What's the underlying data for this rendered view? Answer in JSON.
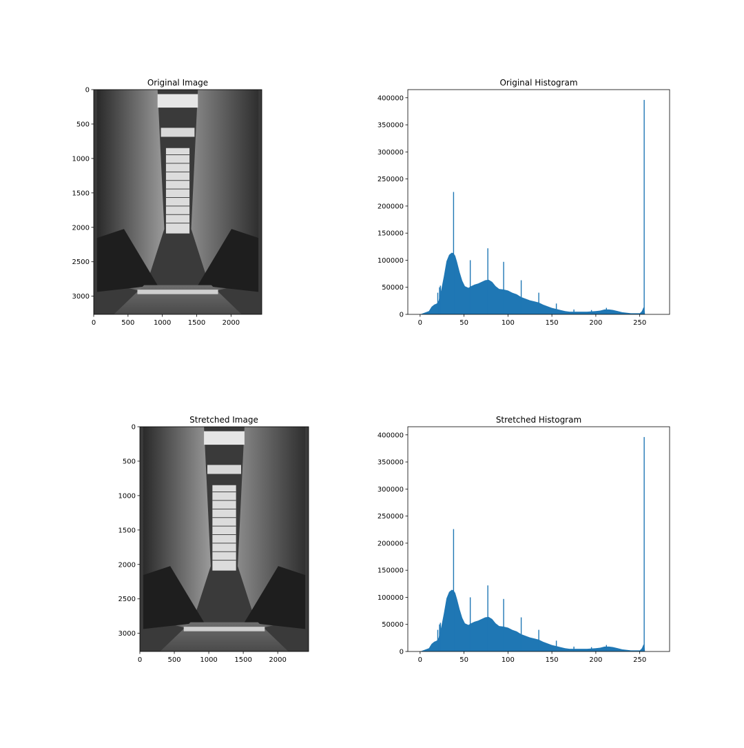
{
  "figure": {
    "background": "#ffffff",
    "bar_color": "#1f77b4"
  },
  "chart_data": [
    {
      "type": "image",
      "title": "Original Image",
      "xticks": [
        0,
        500,
        1000,
        1500,
        2000
      ],
      "yticks": [
        0,
        500,
        1000,
        1500,
        2000,
        2500,
        3000
      ],
      "xlim": [
        0,
        2448
      ],
      "ylim": [
        3264,
        0
      ],
      "grid": false
    },
    {
      "type": "bar",
      "title": "Original Histogram",
      "xticks": [
        0,
        50,
        100,
        150,
        200,
        250
      ],
      "yticks": [
        0,
        50000,
        100000,
        150000,
        200000,
        250000,
        300000,
        350000,
        400000
      ],
      "xlim": [
        -14,
        284
      ],
      "ylim": [
        0,
        415000
      ],
      "grid": false,
      "envelope": [
        [
          0,
          0
        ],
        [
          5,
          3000
        ],
        [
          10,
          6000
        ],
        [
          13,
          14000
        ],
        [
          16,
          18000
        ],
        [
          19,
          20000
        ],
        [
          21,
          25000
        ],
        [
          24,
          45000
        ],
        [
          27,
          70000
        ],
        [
          30,
          98000
        ],
        [
          33,
          110000
        ],
        [
          36,
          114000
        ],
        [
          38,
          113000
        ],
        [
          40,
          108000
        ],
        [
          42,
          97000
        ],
        [
          45,
          78000
        ],
        [
          48,
          62000
        ],
        [
          51,
          52000
        ],
        [
          55,
          49000
        ],
        [
          58,
          52000
        ],
        [
          62,
          55000
        ],
        [
          66,
          57000
        ],
        [
          70,
          60000
        ],
        [
          74,
          63000
        ],
        [
          78,
          64000
        ],
        [
          82,
          60000
        ],
        [
          86,
          52000
        ],
        [
          90,
          47000
        ],
        [
          95,
          46000
        ],
        [
          100,
          44000
        ],
        [
          105,
          40000
        ],
        [
          110,
          37000
        ],
        [
          115,
          32000
        ],
        [
          120,
          29000
        ],
        [
          125,
          26000
        ],
        [
          130,
          24000
        ],
        [
          135,
          22000
        ],
        [
          140,
          18000
        ],
        [
          145,
          15000
        ],
        [
          150,
          12000
        ],
        [
          155,
          10000
        ],
        [
          160,
          8000
        ],
        [
          165,
          6000
        ],
        [
          170,
          5000
        ],
        [
          180,
          5000
        ],
        [
          190,
          5000
        ],
        [
          200,
          6000
        ],
        [
          205,
          7000
        ],
        [
          210,
          9000
        ],
        [
          215,
          9000
        ],
        [
          220,
          8000
        ],
        [
          225,
          6000
        ],
        [
          230,
          4000
        ],
        [
          240,
          2000
        ],
        [
          250,
          2000
        ],
        [
          252,
          5000
        ],
        [
          253,
          8000
        ],
        [
          254,
          12000
        ],
        [
          255,
          14000
        ],
        [
          256,
          0
        ]
      ],
      "spikes": [
        [
          20,
          40000
        ],
        [
          22,
          50000
        ],
        [
          23,
          53000
        ],
        [
          38,
          226000
        ],
        [
          57,
          100000
        ],
        [
          77,
          122000
        ],
        [
          95,
          97000
        ],
        [
          115,
          63000
        ],
        [
          135,
          40000
        ],
        [
          155,
          20000
        ],
        [
          175,
          9000
        ],
        [
          195,
          8000
        ],
        [
          212,
          12000
        ],
        [
          255,
          396000
        ]
      ]
    },
    {
      "type": "image",
      "title": "Stretched Image",
      "xticks": [
        0,
        500,
        1000,
        1500,
        2000
      ],
      "yticks": [
        0,
        500,
        1000,
        1500,
        2000,
        2500,
        3000
      ],
      "xlim": [
        0,
        2448
      ],
      "ylim": [
        3264,
        0
      ],
      "grid": false
    },
    {
      "type": "bar",
      "title": "Stretched Histogram",
      "xticks": [
        0,
        50,
        100,
        150,
        200,
        250
      ],
      "yticks": [
        0,
        50000,
        100000,
        150000,
        200000,
        250000,
        300000,
        350000,
        400000
      ],
      "xlim": [
        -14,
        284
      ],
      "ylim": [
        0,
        415000
      ],
      "grid": false,
      "envelope": [
        [
          0,
          0
        ],
        [
          5,
          3000
        ],
        [
          10,
          6000
        ],
        [
          13,
          14000
        ],
        [
          16,
          18000
        ],
        [
          19,
          20000
        ],
        [
          21,
          25000
        ],
        [
          24,
          45000
        ],
        [
          27,
          70000
        ],
        [
          30,
          98000
        ],
        [
          33,
          110000
        ],
        [
          36,
          114000
        ],
        [
          38,
          113000
        ],
        [
          40,
          108000
        ],
        [
          42,
          97000
        ],
        [
          45,
          78000
        ],
        [
          48,
          62000
        ],
        [
          51,
          52000
        ],
        [
          55,
          49000
        ],
        [
          58,
          52000
        ],
        [
          62,
          55000
        ],
        [
          66,
          57000
        ],
        [
          70,
          60000
        ],
        [
          74,
          63000
        ],
        [
          78,
          64000
        ],
        [
          82,
          60000
        ],
        [
          86,
          52000
        ],
        [
          90,
          47000
        ],
        [
          95,
          46000
        ],
        [
          100,
          44000
        ],
        [
          105,
          40000
        ],
        [
          110,
          37000
        ],
        [
          115,
          32000
        ],
        [
          120,
          29000
        ],
        [
          125,
          26000
        ],
        [
          130,
          24000
        ],
        [
          135,
          22000
        ],
        [
          140,
          18000
        ],
        [
          145,
          15000
        ],
        [
          150,
          12000
        ],
        [
          155,
          10000
        ],
        [
          160,
          8000
        ],
        [
          165,
          6000
        ],
        [
          170,
          5000
        ],
        [
          180,
          5000
        ],
        [
          190,
          5000
        ],
        [
          200,
          6000
        ],
        [
          205,
          7000
        ],
        [
          210,
          9000
        ],
        [
          215,
          9000
        ],
        [
          220,
          8000
        ],
        [
          225,
          6000
        ],
        [
          230,
          4000
        ],
        [
          240,
          2000
        ],
        [
          250,
          2000
        ],
        [
          252,
          5000
        ],
        [
          253,
          8000
        ],
        [
          254,
          12000
        ],
        [
          255,
          14000
        ],
        [
          256,
          0
        ]
      ],
      "spikes": [
        [
          20,
          40000
        ],
        [
          22,
          50000
        ],
        [
          23,
          53000
        ],
        [
          38,
          226000
        ],
        [
          57,
          100000
        ],
        [
          77,
          122000
        ],
        [
          95,
          97000
        ],
        [
          115,
          63000
        ],
        [
          135,
          40000
        ],
        [
          155,
          20000
        ],
        [
          175,
          9000
        ],
        [
          195,
          8000
        ],
        [
          212,
          12000
        ],
        [
          255,
          396000
        ]
      ]
    }
  ]
}
